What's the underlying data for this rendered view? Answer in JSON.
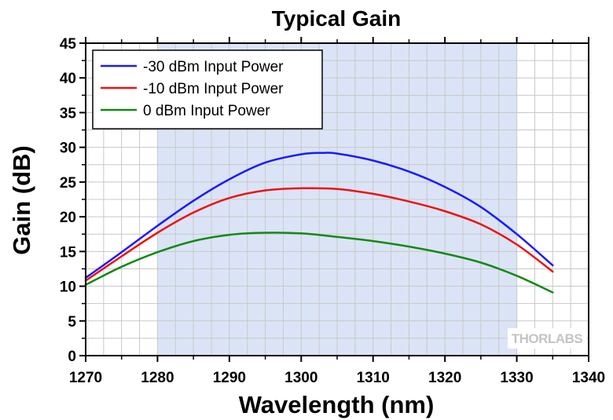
{
  "chart_data": {
    "type": "line",
    "title": "Typical Gain",
    "xlabel": "Wavelength (nm)",
    "ylabel": "Gain (dB)",
    "xlim": [
      1270,
      1340
    ],
    "ylim": [
      0,
      45
    ],
    "xticks": [
      1270,
      1280,
      1290,
      1300,
      1310,
      1320,
      1330,
      1340
    ],
    "yticks": [
      0,
      5,
      10,
      15,
      20,
      25,
      30,
      35,
      40,
      45
    ],
    "grid": true,
    "legend_position": "top-left",
    "shaded_region": {
      "x_from": 1280,
      "x_to": 1330,
      "color": "#dbe4f6"
    },
    "watermark": "THORLABS",
    "series": [
      {
        "name": "-30 dBm Input Power",
        "color": "#1a1aff",
        "x": [
          1270,
          1275,
          1280,
          1285,
          1290,
          1295,
          1300,
          1303,
          1305,
          1310,
          1315,
          1320,
          1325,
          1330,
          1335
        ],
        "y": [
          11.2,
          14.9,
          18.7,
          22.3,
          25.4,
          27.8,
          29.0,
          29.2,
          29.1,
          28.1,
          26.5,
          24.3,
          21.4,
          17.5,
          13.0
        ]
      },
      {
        "name": "-10 dBm Input Power",
        "color": "#ee1111",
        "x": [
          1270,
          1275,
          1280,
          1285,
          1290,
          1295,
          1300,
          1305,
          1310,
          1315,
          1320,
          1325,
          1330,
          1335
        ],
        "y": [
          10.8,
          14.3,
          17.7,
          20.6,
          22.7,
          23.8,
          24.1,
          24.0,
          23.3,
          22.2,
          20.8,
          18.9,
          16.0,
          12.1
        ]
      },
      {
        "name": "0 dBm Input Power",
        "color": "#128a12",
        "x": [
          1270,
          1275,
          1280,
          1285,
          1290,
          1295,
          1300,
          1305,
          1310,
          1315,
          1320,
          1325,
          1330,
          1335
        ],
        "y": [
          10.2,
          12.8,
          14.9,
          16.5,
          17.4,
          17.7,
          17.6,
          17.1,
          16.5,
          15.7,
          14.7,
          13.4,
          11.5,
          9.1
        ]
      }
    ]
  }
}
